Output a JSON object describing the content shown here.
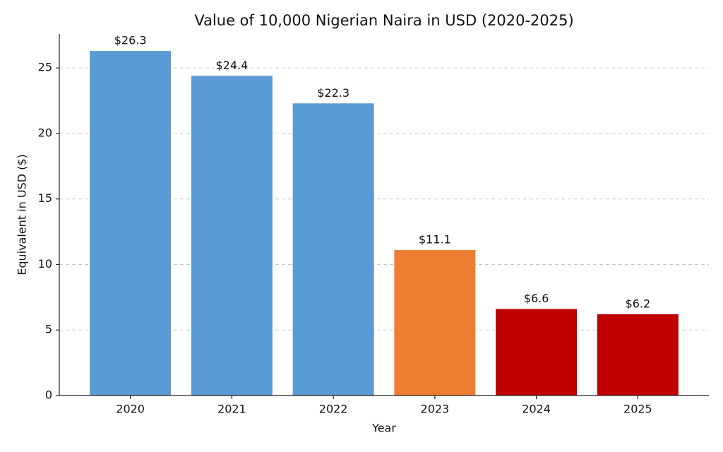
{
  "chart_data": {
    "type": "bar",
    "title": "Value of 10,000 Nigerian Naira in USD (2020-2025)",
    "x_label": "Year",
    "y_label": "Equivalent in USD ($)",
    "categories": [
      "2020",
      "2021",
      "2022",
      "2023",
      "2024",
      "2025"
    ],
    "values": [
      26.3,
      24.4,
      22.3,
      11.1,
      6.6,
      6.2
    ],
    "value_labels": [
      "$26.3",
      "$24.4",
      "$22.3",
      "$11.1",
      "$6.6",
      "$6.2"
    ],
    "colors": [
      "#5b9bd5",
      "#5b9bd5",
      "#5b9bd5",
      "#ed7d31",
      "#c00000",
      "#c00000"
    ],
    "ylim": [
      0,
      27.6
    ],
    "yticks": [
      0,
      5,
      10,
      15,
      20,
      25
    ],
    "grid": true
  }
}
